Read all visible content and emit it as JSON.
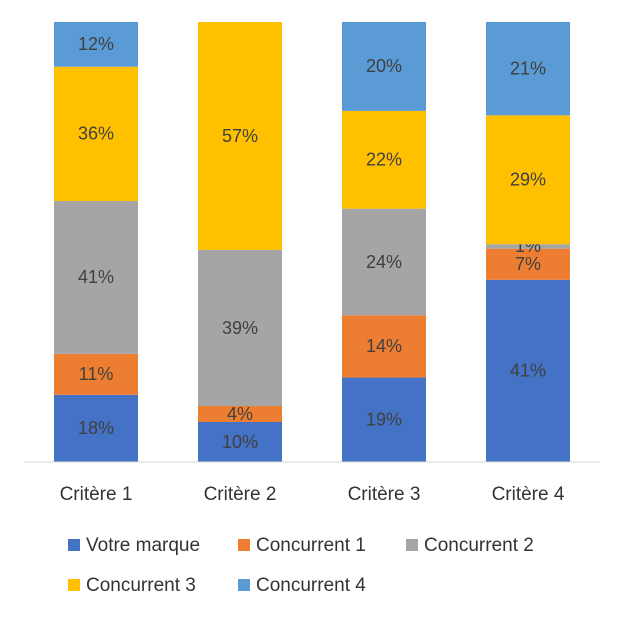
{
  "chart_data": {
    "type": "bar",
    "stacking": "percent",
    "categories": [
      "Critère 1",
      "Critère 2",
      "Critère 3",
      "Critère 4"
    ],
    "series": [
      {
        "name": "Votre marque",
        "color": "#4472c4",
        "values": [
          18,
          10,
          19,
          41
        ],
        "value_labels": [
          "18%",
          "10%",
          "19%",
          "41%"
        ]
      },
      {
        "name": "Concurrent 1",
        "color": "#ed7d31",
        "values": [
          11,
          4,
          14,
          7
        ],
        "value_labels": [
          "11%",
          "4%",
          "14%",
          "7%"
        ]
      },
      {
        "name": "Concurrent 2",
        "color": "#a5a5a5",
        "values": [
          41,
          39,
          24,
          1
        ],
        "value_labels": [
          "41%",
          "39%",
          "24%",
          "1%"
        ]
      },
      {
        "name": "Concurrent 3",
        "color": "#ffc000",
        "values": [
          36,
          57,
          22,
          29
        ],
        "value_labels": [
          "36%",
          "57%",
          "22%",
          "29%"
        ]
      },
      {
        "name": "Concurrent 4",
        "color": "#5b9bd5",
        "values": [
          12,
          0,
          20,
          21
        ],
        "value_labels": [
          "12%",
          null,
          "20%",
          "21%"
        ]
      }
    ]
  }
}
